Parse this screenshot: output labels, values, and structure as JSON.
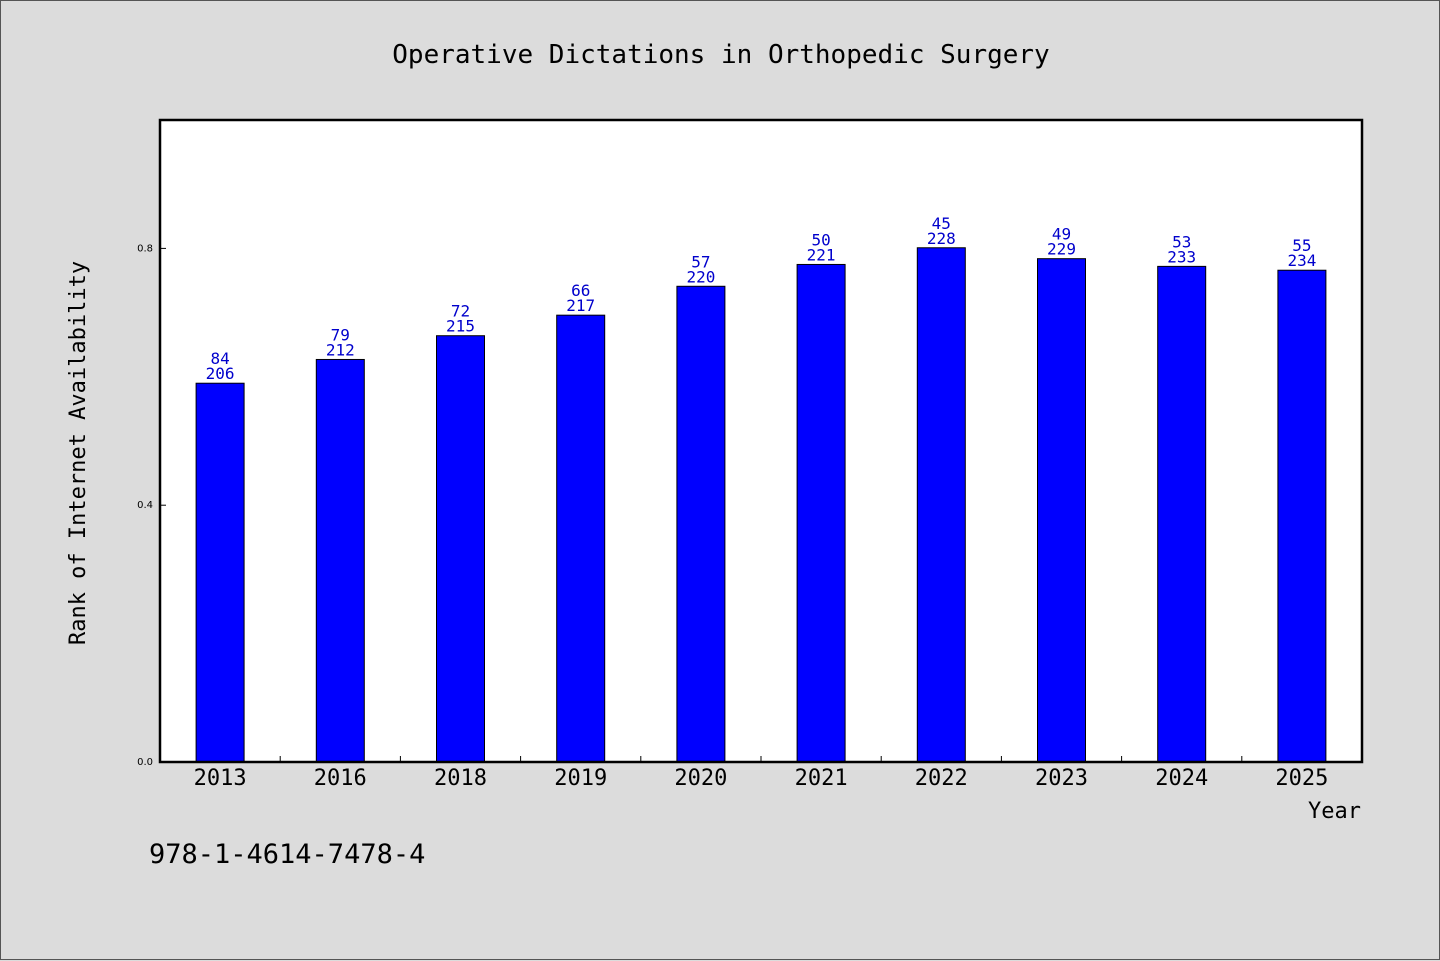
{
  "chart_data": {
    "type": "bar",
    "title": "Operative Dictations in Orthopedic Surgery",
    "xlabel": "Year",
    "ylabel": "Rank of Internet Availability",
    "categories": [
      "2013",
      "2016",
      "2018",
      "2019",
      "2020",
      "2021",
      "2022",
      "2023",
      "2024",
      "2025"
    ],
    "values": [
      0.59,
      0.627,
      0.664,
      0.696,
      0.741,
      0.775,
      0.801,
      0.784,
      0.772,
      0.766
    ],
    "label_top": [
      "84",
      "79",
      "72",
      "66",
      "57",
      "50",
      "45",
      "49",
      "53",
      "55"
    ],
    "label_bottom": [
      "206",
      "212",
      "215",
      "217",
      "220",
      "221",
      "228",
      "229",
      "233",
      "234"
    ],
    "yticks": [
      0.0,
      0.4,
      0.8
    ],
    "ytick_labels": [
      "0.0",
      "0.4",
      "0.8"
    ],
    "ylim": [
      0,
      1.0
    ],
    "bar_color": "#0000ff",
    "label_color": "#0000cc",
    "grid": false
  },
  "footer_text": "978-1-4614-7478-4"
}
